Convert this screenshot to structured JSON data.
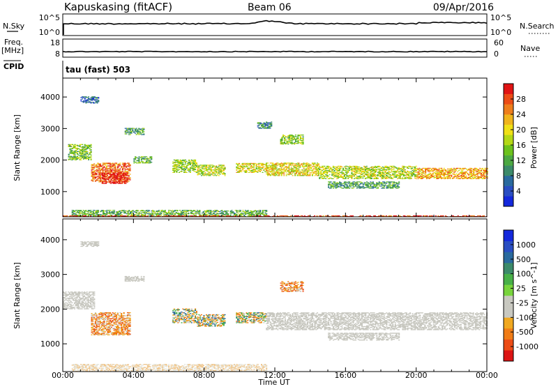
{
  "header": {
    "station": "Kapuskasing (fitACF)",
    "beam": "Beam 06",
    "date": "09/Apr/2016"
  },
  "panels": {
    "nsky": {
      "label": "N.Sky",
      "ticks": [
        "10^5",
        "10^0"
      ],
      "right_ticks": [
        "10^5",
        "10^0"
      ],
      "right_label": "N.Search"
    },
    "freq": {
      "label_top": "Freq.",
      "label_unit": "[MHz]",
      "ticks": [
        "18",
        "8"
      ],
      "right_ticks": [
        "60",
        "0"
      ],
      "right_label": "Nave"
    },
    "cpid": {
      "label": "CPID",
      "mode": "tau (fast) 503"
    }
  },
  "chart_data": [
    {
      "type": "heatmap",
      "name": "power",
      "ylabel": "Slant Range [km]",
      "ylim": [
        200,
        4600
      ],
      "yticks": [
        1000,
        2000,
        3000,
        4000
      ],
      "xlabel": "Time UT",
      "xticks": [
        "00:00",
        "04:00",
        "08:00",
        "12:00",
        "16:00",
        "20:00",
        "00:00"
      ],
      "colorbar": {
        "label": "Power [dB]",
        "ticks": [
          "28",
          "24",
          "20",
          "16",
          "12",
          "8",
          "4"
        ],
        "colors": [
          "#1428dc",
          "#2a4ec2",
          "#2a6a9e",
          "#3c8a6a",
          "#4ca842",
          "#6cc21c",
          "#b4d816",
          "#f0e016",
          "#f0b41c",
          "#ee7e1c",
          "#ec4c16",
          "#e01414"
        ]
      },
      "regions": [
        {
          "t": [
            0.3,
            1.6
          ],
          "r": [
            2000,
            2500
          ],
          "level": 0.45
        },
        {
          "t": [
            1.0,
            2.0
          ],
          "r": [
            3800,
            4000
          ],
          "level": 0.2
        },
        {
          "t": [
            1.6,
            3.8
          ],
          "r": [
            1300,
            1900
          ],
          "level": 0.82
        },
        {
          "t": [
            2.2,
            3.6
          ],
          "r": [
            1250,
            1600
          ],
          "level": 0.98
        },
        {
          "t": [
            3.5,
            4.6
          ],
          "r": [
            2800,
            3000
          ],
          "level": 0.35
        },
        {
          "t": [
            4.0,
            5.0
          ],
          "r": [
            1900,
            2100
          ],
          "level": 0.4
        },
        {
          "t": [
            6.2,
            7.6
          ],
          "r": [
            1600,
            2000
          ],
          "level": 0.5
        },
        {
          "t": [
            7.6,
            9.2
          ],
          "r": [
            1500,
            1850
          ],
          "level": 0.55
        },
        {
          "t": [
            9.8,
            11.5
          ],
          "r": [
            1600,
            1900
          ],
          "level": 0.6
        },
        {
          "t": [
            11.5,
            14.5
          ],
          "r": [
            1500,
            1900
          ],
          "level": 0.62
        },
        {
          "t": [
            12.3,
            13.6
          ],
          "r": [
            2500,
            2800
          ],
          "level": 0.5
        },
        {
          "t": [
            11.0,
            11.8
          ],
          "r": [
            3000,
            3200
          ],
          "level": 0.3
        },
        {
          "t": [
            14.5,
            20.0
          ],
          "r": [
            1400,
            1800
          ],
          "level": 0.55
        },
        {
          "t": [
            20.0,
            24.0
          ],
          "r": [
            1400,
            1750
          ],
          "level": 0.72
        },
        {
          "t": [
            15.0,
            19.0
          ],
          "r": [
            1100,
            1300
          ],
          "level": 0.35
        },
        {
          "t": [
            0.5,
            11.5
          ],
          "r": [
            200,
            400
          ],
          "level": 0.4
        },
        {
          "t": [
            0.0,
            24.0
          ],
          "r": [
            200,
            230
          ],
          "level": 0.9
        }
      ]
    },
    {
      "type": "heatmap",
      "name": "velocity",
      "ylabel": "Slant Range [km]",
      "ylim": [
        200,
        4600
      ],
      "yticks": [
        1000,
        2000,
        3000,
        4000
      ],
      "xlabel": "Time UT",
      "xticks": [
        "00:00",
        "04:00",
        "08:00",
        "12:00",
        "16:00",
        "20:00",
        "00:00"
      ],
      "colorbar": {
        "label": "Velocity [m s^-1]",
        "ticks": [
          "1000",
          "500",
          "100",
          "25",
          "-25",
          "-100",
          "-500",
          "-1000"
        ],
        "colors": [
          "#dc1414",
          "#ec4c16",
          "#f07c16",
          "#f0a820",
          "#c8c8c0",
          "#c8c8c0",
          "#78d43c",
          "#48b048",
          "#3c8a6a",
          "#2a6a9e",
          "#2a4ec2",
          "#1428dc"
        ]
      },
      "regions": [
        {
          "t": [
            0.0,
            1.8
          ],
          "r": [
            2000,
            2500
          ],
          "kind": "ground"
        },
        {
          "t": [
            1.0,
            2.0
          ],
          "r": [
            3800,
            3950
          ],
          "kind": "ground"
        },
        {
          "t": [
            1.6,
            3.8
          ],
          "r": [
            1250,
            1900
          ],
          "kind": "neg"
        },
        {
          "t": [
            3.5,
            4.6
          ],
          "r": [
            2800,
            2950
          ],
          "kind": "ground"
        },
        {
          "t": [
            6.2,
            7.6
          ],
          "r": [
            1600,
            2000
          ],
          "kind": "mixed"
        },
        {
          "t": [
            7.6,
            9.2
          ],
          "r": [
            1500,
            1850
          ],
          "kind": "mixed"
        },
        {
          "t": [
            9.8,
            11.5
          ],
          "r": [
            1600,
            1900
          ],
          "kind": "mixed"
        },
        {
          "t": [
            12.3,
            13.6
          ],
          "r": [
            2500,
            2800
          ],
          "kind": "neg"
        },
        {
          "t": [
            11.5,
            24.0
          ],
          "r": [
            1400,
            1900
          ],
          "kind": "ground"
        },
        {
          "t": [
            15.0,
            19.0
          ],
          "r": [
            1100,
            1300
          ],
          "kind": "ground"
        },
        {
          "t": [
            0.5,
            11.5
          ],
          "r": [
            200,
            400
          ],
          "kind": "faint"
        }
      ]
    }
  ]
}
